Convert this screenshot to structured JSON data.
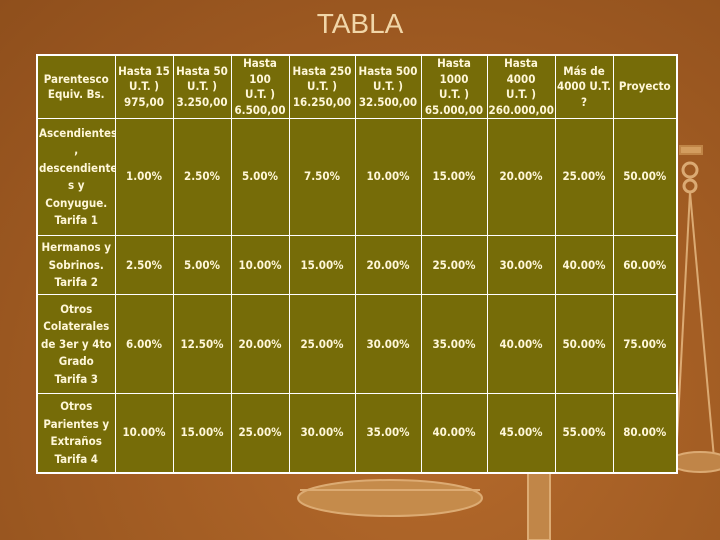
{
  "title": "TABLA",
  "table": {
    "headers": [
      "Parentesco\nEquiv. Bs.",
      "Hasta 15\nU.T. )\n975,00",
      "Hasta 50\nU.T. )\n3.250,00",
      "Hasta 100\nU.T. )\n6.500,00",
      "Hasta 250\nU.T. )\n16.250,00",
      "Hasta 500\nU.T. )\n32.500,00",
      "Hasta 1000\nU.T. )\n65.000,00",
      "Hasta 4000\nU.T. )\n260.000,00",
      "Más de\n4000 U.T.\n?",
      "Proyecto"
    ],
    "rows": [
      {
        "category": "Ascendientes\n,\ndescendiente\ns y\nConyugue.\nTarifa 1",
        "values": [
          "1.00%",
          "2.50%",
          "5.00%",
          "7.50%",
          "10.00%",
          "15.00%",
          "20.00%",
          "25.00%",
          "50.00%"
        ]
      },
      {
        "category": "Hermanos y\nSobrinos.\nTarifa 2",
        "values": [
          "2.50%",
          "5.00%",
          "10.00%",
          "15.00%",
          "20.00%",
          "25.00%",
          "30.00%",
          "40.00%",
          "60.00%"
        ]
      },
      {
        "category": "Otros\nColaterales\nde 3er y 4to\nGrado\nTarifa 3",
        "values": [
          "6.00%",
          "12.50%",
          "20.00%",
          "25.00%",
          "30.00%",
          "35.00%",
          "40.00%",
          "50.00%",
          "75.00%"
        ]
      },
      {
        "category": "Otros\nParientes y\nExtraños\nTarifa 4",
        "values": [
          "10.00%",
          "15.00%",
          "25.00%",
          "30.00%",
          "35.00%",
          "40.00%",
          "45.00%",
          "55.00%",
          "80.00%"
        ]
      }
    ]
  },
  "colors": {
    "table_bg": "#766c08",
    "text": "#fff7d8",
    "title": "#f1d6a8",
    "background": "#a45e24"
  }
}
